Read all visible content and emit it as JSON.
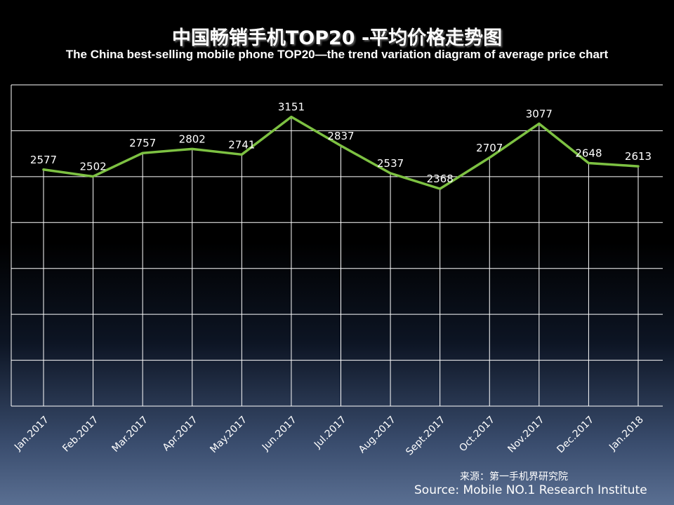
{
  "chart_data": {
    "type": "line",
    "title": "中国畅销手机TOP20 -平均价格走势图",
    "subtitle": "The China best-selling mobile phone TOP20—the trend variation diagram of average price chart",
    "categories": [
      "Jan.2017",
      "Feb.2017",
      "Mar.2017",
      "Apr.2017",
      "May.2017",
      "Jun.2017",
      "Jul.2017",
      "Aug.2017",
      "Sept.2017",
      "Oct.2017",
      "Nov.2017",
      "Dec.2017",
      "Jan.2018"
    ],
    "series": [
      {
        "name": "Average price",
        "values": [
          2577,
          2502,
          2757,
          2802,
          2741,
          3151,
          2837,
          2537,
          2368,
          2707,
          3077,
          2648,
          2613
        ]
      }
    ],
    "ylim": [
      0,
      3500
    ],
    "ytick_step": 500,
    "grid": true,
    "legend": "none",
    "colors": {
      "line": "#7dc142",
      "grid": "#ffffff",
      "text": "#ffffff"
    }
  },
  "source": {
    "cn": "来源：第一手机界研究院",
    "en": "Source: Mobile NO.1 Research Institute"
  }
}
